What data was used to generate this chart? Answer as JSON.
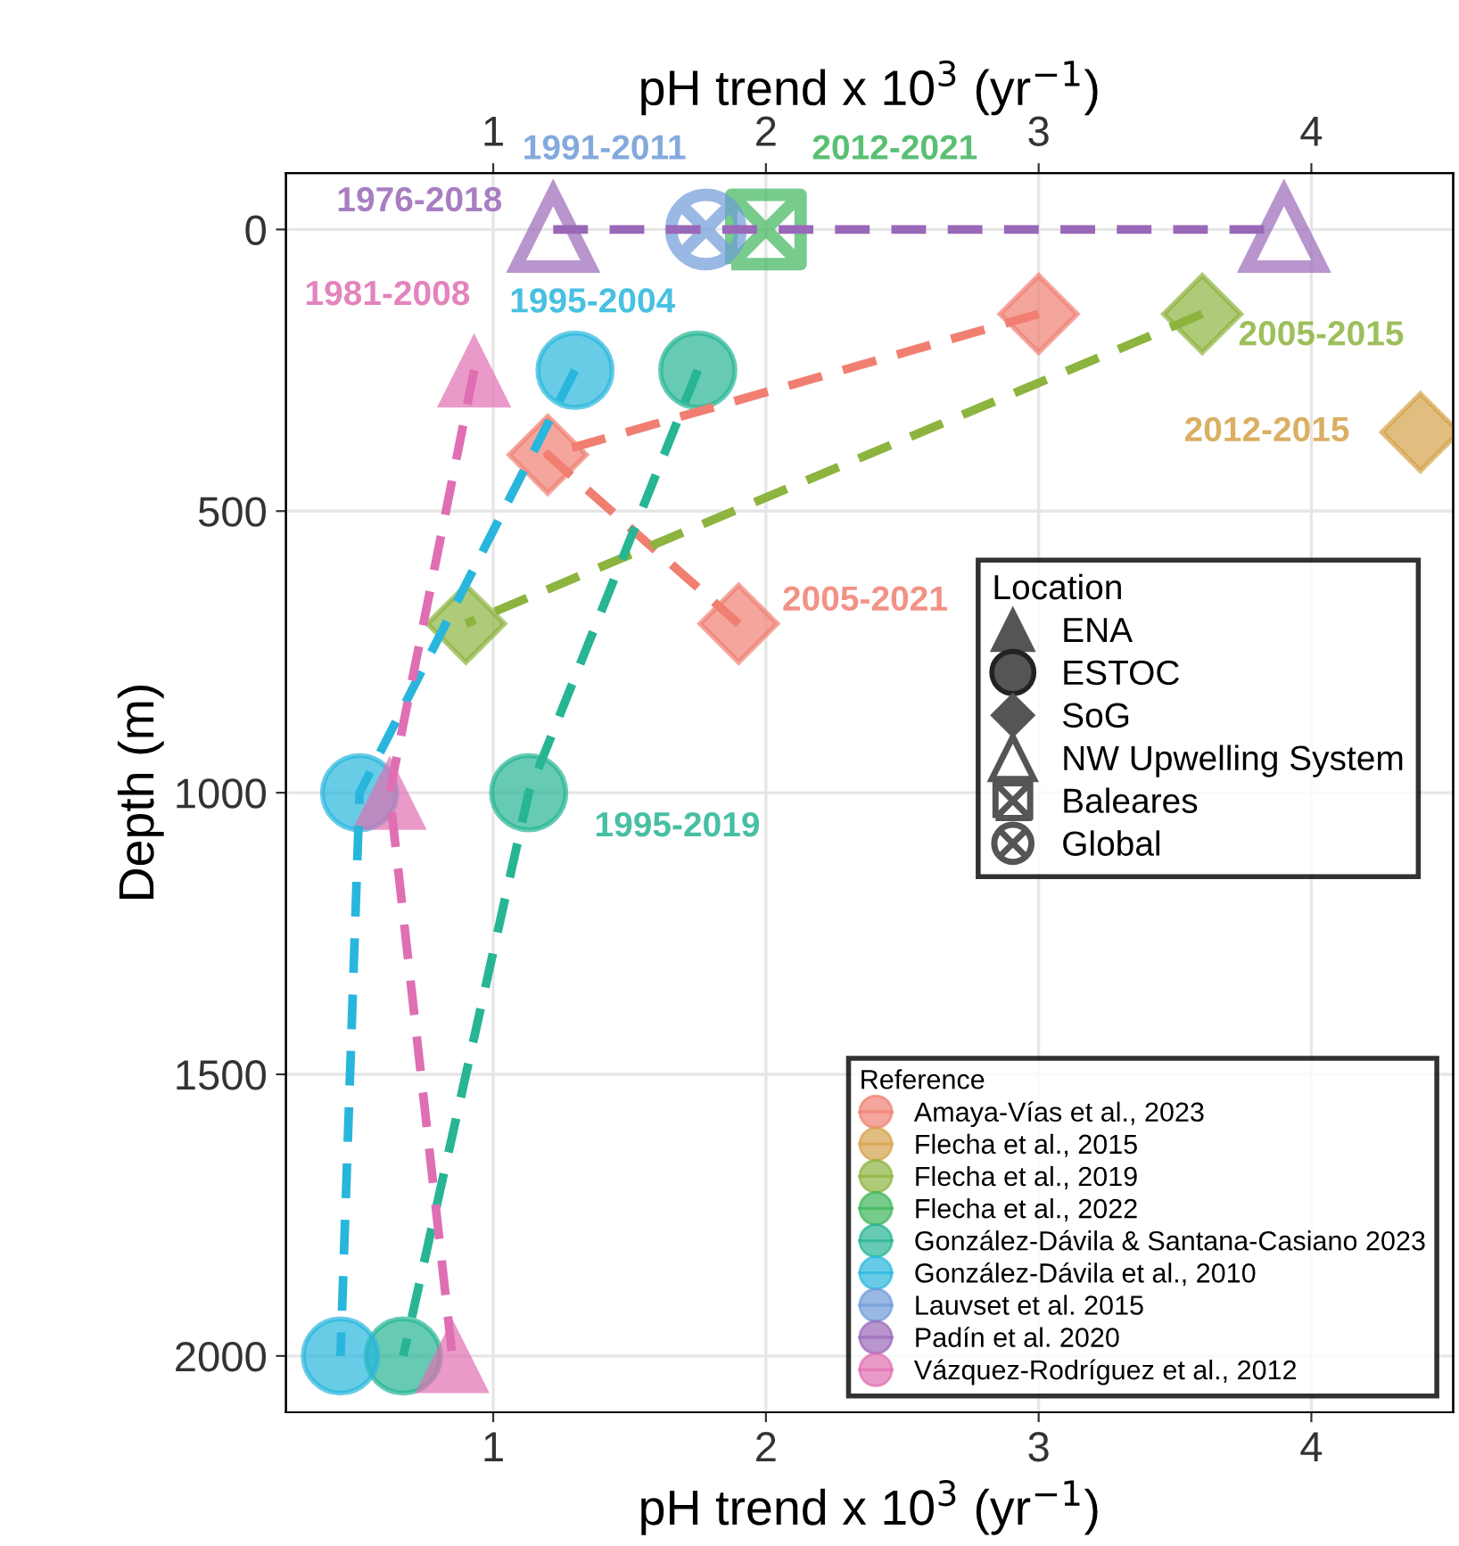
{
  "chart_data": {
    "type": "line",
    "xlabel": "pH trend x 10$^{3}$ (yr$^{−1}$)",
    "x2label": "pH trend x 10$^{3}$ (yr$^{−1}$)",
    "ylabel": "Depth (m)",
    "xlim": [
      0.24,
      4.52
    ],
    "xticks": [
      1,
      2,
      3,
      4
    ],
    "x2lim": [
      0.24,
      4.52
    ],
    "x2ticks": [
      1,
      2,
      3,
      4
    ],
    "ylim": [
      2100,
      -100
    ],
    "yticks": [
      0,
      500,
      1000,
      1500,
      2000
    ],
    "grid": true,
    "line_style": "dashed",
    "legend": "bottom right",
    "legend_title": "Reference",
    "series": [
      {
        "name": "Amaya-Vías et al., 2023",
        "color": "#f07f72",
        "marker": "diamond",
        "x": [
          3.0,
          1.2,
          1.9
        ],
        "values": [
          150,
          400,
          700
        ]
      },
      {
        "name": "Flecha et al., 2015",
        "color": "#d4a24a",
        "marker": "diamond",
        "x": [
          4.4
        ],
        "values": [
          360
        ]
      },
      {
        "name": "Flecha et al., 2019",
        "color": "#8db43f",
        "marker": "diamond",
        "x": [
          3.6,
          0.9
        ],
        "values": [
          150,
          700
        ]
      },
      {
        "name": "Flecha et al., 2022",
        "color": "#3db55a",
        "marker": "square",
        "x": [
          2.0
        ],
        "values": [
          0
        ]
      },
      {
        "name": "González-Dávila & Santana-Casiano 2023",
        "color": "#27b594",
        "marker": "circle",
        "x": [
          1.75,
          1.13,
          0.67
        ],
        "values": [
          250,
          1000,
          2000
        ]
      },
      {
        "name": "González-Dávila et al., 2010",
        "color": "#29b6dd",
        "marker": "circle",
        "x": [
          1.3,
          0.51,
          0.44
        ],
        "values": [
          250,
          1000,
          2000
        ]
      },
      {
        "name": "Lauvset et al. 2015",
        "color": "#6e9bd9",
        "marker": "circle",
        "x": [
          1.78
        ],
        "values": [
          0
        ]
      },
      {
        "name": "Padín et al. 2020",
        "color": "#9a68b8",
        "marker": "triangle",
        "x": [
          1.22,
          3.9
        ],
        "values": [
          0,
          0
        ]
      },
      {
        "name": "Vázquez-Rodríguez et al., 2012",
        "color": "#df6fb2",
        "marker": "triangle",
        "x": [
          0.93,
          0.62,
          0.85
        ],
        "values": [
          250,
          1000,
          2000
        ]
      }
    ],
    "annotations": [
      {
        "text": "1976-2018",
        "x": 1.22,
        "y": 0
      },
      {
        "text": "1991-2011",
        "x": 1.78,
        "y": 0
      },
      {
        "text": "2012-2021",
        "x": 2.0,
        "y": 0
      },
      {
        "text": "1981-2008",
        "x": 0.93,
        "y": 250
      },
      {
        "text": "1995-2004",
        "x": 1.3,
        "y": 250
      },
      {
        "text": "2005-2015",
        "x": 3.6,
        "y": 150
      },
      {
        "text": "2012-2015",
        "x": 4.4,
        "y": 360
      },
      {
        "text": "2005-2021",
        "x": 1.9,
        "y": 700
      },
      {
        "text": "1995-2019",
        "x": 1.13,
        "y": 1000
      },
      "Location",
      "ENA",
      "ESTOC",
      "SoG",
      "NW Upwelling System",
      "Baleares",
      "Global"
    ]
  }
}
